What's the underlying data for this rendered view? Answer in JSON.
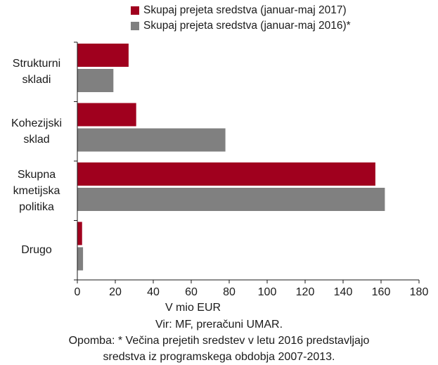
{
  "chart_data": {
    "type": "bar",
    "orientation": "horizontal",
    "categories": [
      "Strukturni skladi",
      "Kohezijski sklad",
      "Skupna kmetijska politika",
      "Drugo"
    ],
    "category_label_lines": [
      [
        "Strukturni",
        "skladi"
      ],
      [
        "Kohezijski",
        "sklad"
      ],
      [
        "Skupna",
        "kmetijska",
        "politika"
      ],
      [
        "Drugo"
      ]
    ],
    "series": [
      {
        "name": "Skupaj prejeta sredstva (januar-maj 2017)",
        "color": "#a0001e",
        "values": [
          27,
          31,
          157,
          2.5
        ]
      },
      {
        "name": "Skupaj prejeta sredstva (januar-maj 2016)*",
        "color": "#808080",
        "values": [
          19,
          78,
          162,
          3
        ]
      }
    ],
    "xlabel": "V mio EUR",
    "xlim": [
      0,
      180
    ],
    "xticks": [
      "0",
      "20",
      "40",
      "60",
      "80",
      "100",
      "120",
      "140",
      "160",
      "180"
    ],
    "grid": false,
    "legend_position": "top-right"
  },
  "footer": {
    "source": "Vir: MF, preračuni UMAR.",
    "note_line1": "Opomba: * Večina prejetih sredstev v letu 2016 predstavljajo",
    "note_line2": "sredstva iz programskega obdobja 2007-2013."
  }
}
